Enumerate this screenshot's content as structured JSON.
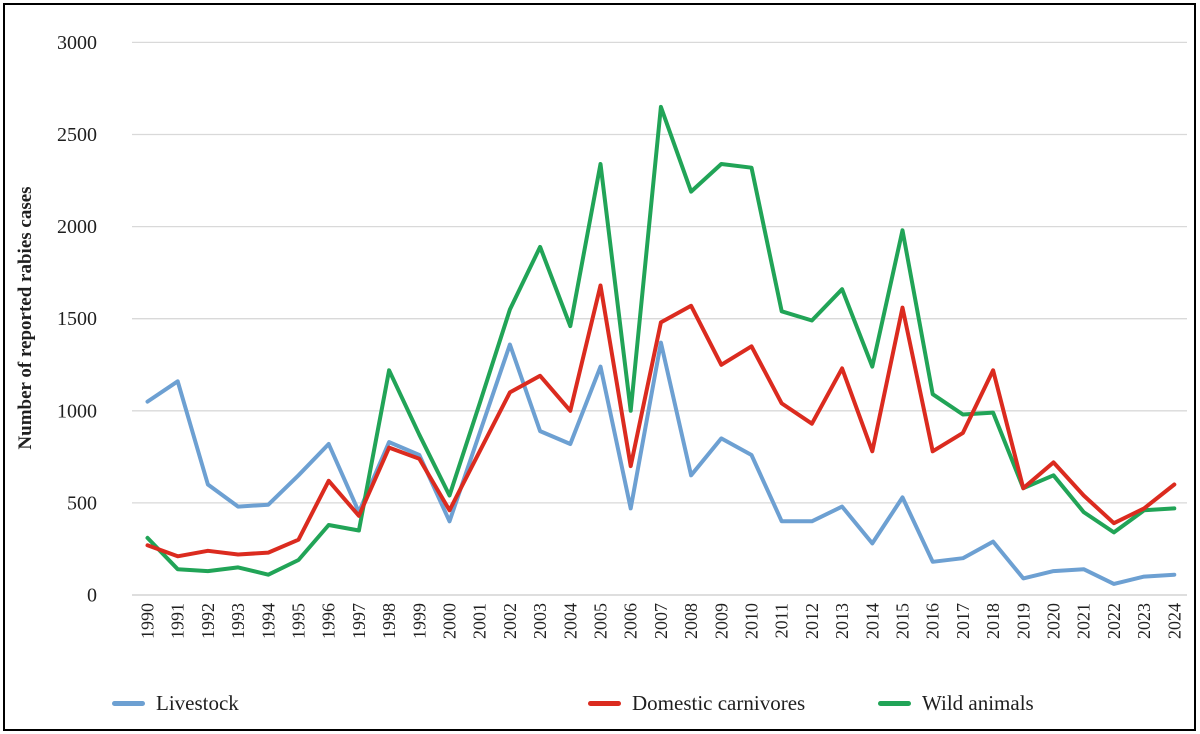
{
  "figure": {
    "background_color": "#ffffff",
    "border_color": "#000000",
    "gridline_color": "#d9d9d9",
    "axisline_color": "#c9c9c9",
    "text_color": "#1f1f1f"
  },
  "legend": {
    "items": [
      "Livestock",
      "Domestic carnivores",
      "Wild animals"
    ]
  },
  "chart_data": {
    "type": "line",
    "title": "",
    "xlabel": "",
    "ylabel": "Number of reported rabies cases",
    "ylim": [
      0,
      3000
    ],
    "y_ticks": [
      0,
      500,
      1000,
      1500,
      2000,
      2500,
      3000
    ],
    "grid": "horizontal",
    "legend_position": "bottom",
    "categories": [
      "1990",
      "1991",
      "1992",
      "1993",
      "1994",
      "1995",
      "1996",
      "1997",
      "1998",
      "1999",
      "2000",
      "2001",
      "2002",
      "2003",
      "2004",
      "2005",
      "2006",
      "2007",
      "2008",
      "2009",
      "2010",
      "2011",
      "2012",
      "2013",
      "2014",
      "2015",
      "2016",
      "2017",
      "2018",
      "2019",
      "2020",
      "2021",
      "2022",
      "2023",
      "2024"
    ],
    "series": [
      {
        "name": "Livestock",
        "color": "#6da0d2",
        "values": [
          1050,
          1160,
          600,
          480,
          490,
          650,
          820,
          450,
          830,
          760,
          400,
          880,
          1360,
          890,
          820,
          1240,
          470,
          1370,
          650,
          850,
          760,
          400,
          400,
          480,
          280,
          530,
          180,
          200,
          290,
          90,
          130,
          140,
          60,
          100,
          110
        ]
      },
      {
        "name": "Domestic carnivores",
        "color": "#db2b1f",
        "values": [
          270,
          210,
          240,
          220,
          230,
          300,
          620,
          430,
          800,
          740,
          460,
          780,
          1100,
          1190,
          1000,
          1680,
          700,
          1480,
          1570,
          1250,
          1350,
          1040,
          930,
          1230,
          780,
          1560,
          780,
          880,
          1220,
          580,
          720,
          540,
          390,
          470,
          600
        ]
      },
      {
        "name": "Wild animals",
        "color": "#21a457",
        "values": [
          310,
          140,
          130,
          150,
          110,
          190,
          380,
          350,
          1220,
          870,
          540,
          1040,
          1550,
          1890,
          1460,
          2340,
          1000,
          2650,
          2190,
          2340,
          2320,
          1540,
          1490,
          1660,
          1240,
          1980,
          1090,
          980,
          990,
          580,
          650,
          450,
          340,
          460,
          470
        ]
      }
    ]
  }
}
